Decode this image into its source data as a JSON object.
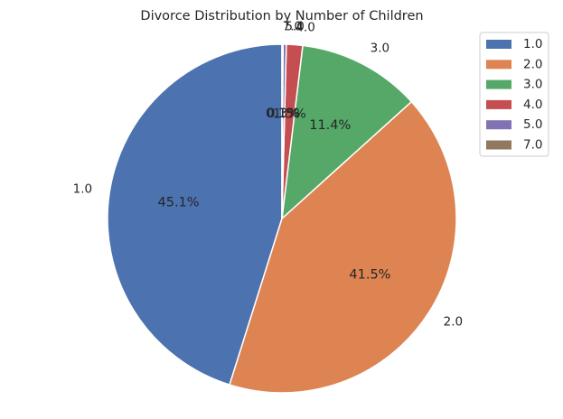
{
  "chart_data": {
    "type": "pie",
    "title": "Divorce Distribution by Number of Children",
    "categories": [
      "1.0",
      "2.0",
      "3.0",
      "4.0",
      "5.0",
      "7.0"
    ],
    "values": [
      45.1,
      41.5,
      11.4,
      1.5,
      0.3,
      0.1
    ],
    "labels": [
      "45.1%",
      "41.5%",
      "11.4%",
      "1.5%",
      "0.3%",
      "0.1%"
    ],
    "colors": [
      "#4c72b0",
      "#dd8452",
      "#55a868",
      "#c44e52",
      "#8172b3",
      "#937860"
    ],
    "start_angle_deg": 90,
    "direction": "counterclockwise",
    "legend_position": "top-right"
  }
}
